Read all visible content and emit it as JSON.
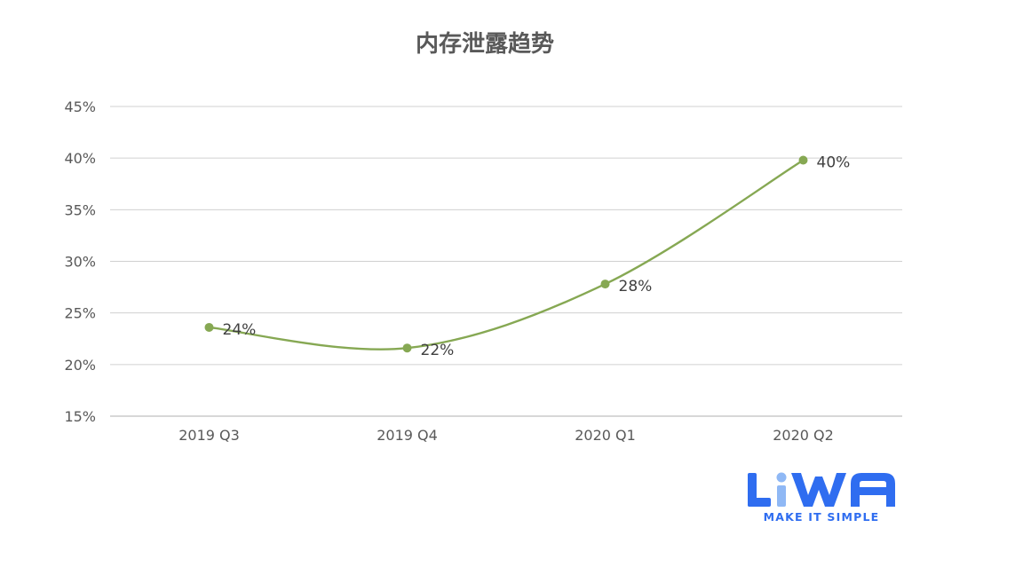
{
  "chart_data": {
    "type": "line",
    "title": "内存泄露趋势",
    "categories": [
      "2019 Q3",
      "2019 Q4",
      "2020 Q1",
      "2020 Q2"
    ],
    "series": [
      {
        "values": [
          23.6,
          21.6,
          27.8,
          39.8
        ],
        "data_labels": [
          "24%",
          "22%",
          "28%",
          "40%"
        ],
        "color": "#86a853"
      }
    ],
    "ylim": [
      15,
      45
    ],
    "yticks": [
      15,
      20,
      25,
      30,
      35,
      40,
      45
    ],
    "ytick_labels": [
      "15%",
      "20%",
      "25%",
      "30%",
      "35%",
      "40%",
      "45%"
    ],
    "smooth": true,
    "grid": true,
    "legend": "none"
  },
  "logo": {
    "text": "LiWA",
    "tagline": "MAKE IT SIMPLE",
    "color": "#2f6df0",
    "dot_color": "#8fb8f5"
  }
}
